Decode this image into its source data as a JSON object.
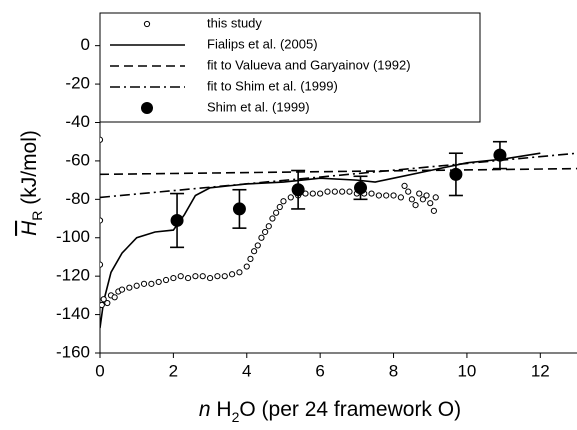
{
  "chart_data": {
    "type": "line",
    "x_label": [
      "n",
      " H",
      "2",
      "O (per 24 framework O)"
    ],
    "y_label": [
      "H",
      "R",
      " (kJ/mol)"
    ],
    "xlim": [
      0,
      13
    ],
    "ylim": [
      -160,
      17
    ],
    "xticks": [
      0,
      2,
      4,
      6,
      8,
      10,
      12
    ],
    "yticks": [
      -160,
      -140,
      -120,
      -100,
      -80,
      -60,
      -40,
      -20,
      0
    ],
    "color": "#000000",
    "legend": "top-left",
    "series": [
      {
        "name": "this study",
        "style": "open-markers",
        "x": [
          0,
          0,
          0,
          0,
          0.05,
          0.1,
          0.2,
          0.3,
          0.4,
          0.5,
          0.6,
          0.8,
          1.0,
          1.2,
          1.4,
          1.6,
          1.8,
          2.0,
          2.2,
          2.4,
          2.6,
          2.8,
          3.0,
          3.2,
          3.4,
          3.6,
          3.8,
          4.0,
          4.1,
          4.2,
          4.3,
          4.4,
          4.5,
          4.6,
          4.7,
          4.8,
          4.9,
          5.0,
          5.2,
          5.4,
          5.6,
          5.8,
          6.0,
          6.2,
          6.4,
          6.6,
          6.8,
          7.0,
          7.2,
          7.4,
          7.6,
          7.8,
          8.0,
          8.2,
          8.3,
          8.4,
          8.5,
          8.6,
          8.7,
          8.8,
          8.9,
          9.0,
          9.1,
          9.15
        ],
        "values": [
          0,
          -49,
          -91,
          -114,
          -135,
          -132,
          -134,
          -130,
          -131,
          -128,
          -127,
          -126,
          -125,
          -124,
          -124,
          -123,
          -122,
          -121,
          -120,
          -121,
          -120,
          -120,
          -121,
          -120,
          -120,
          -119,
          -118,
          -115,
          -111,
          -107,
          -104,
          -100,
          -97,
          -94,
          -90,
          -87,
          -84,
          -81,
          -79,
          -78,
          -77,
          -77,
          -77,
          -76,
          -76,
          -76,
          -76,
          -77,
          -77,
          -77,
          -78,
          -78,
          -78,
          -79,
          -73,
          -76,
          -80,
          -83,
          -77,
          -80,
          -78,
          -82,
          -86,
          -79
        ]
      },
      {
        "name": "Fialips et al. (2005)",
        "style": "solid",
        "x": [
          0,
          0.1,
          0.3,
          0.6,
          1,
          1.5,
          2,
          2.3,
          2.6,
          3,
          3.5,
          4,
          5,
          6,
          7,
          7.5,
          8,
          9,
          10,
          11,
          12
        ],
        "values": [
          -147,
          -133,
          -118,
          -108,
          -100,
          -97,
          -96,
          -88,
          -78,
          -74,
          -73,
          -72,
          -71,
          -69,
          -70,
          -71,
          -69,
          -65,
          -61,
          -59,
          -56
        ]
      },
      {
        "name": "fit to Valueva and Garyainov (1992)",
        "style": "dashed",
        "x": [
          0,
          13
        ],
        "values": [
          -67,
          -64
        ]
      },
      {
        "name": "fit to Shim et al. (1999)",
        "style": "dashdot",
        "x": [
          0,
          13
        ],
        "values": [
          -79,
          -56
        ]
      },
      {
        "name": "Shim et al. (1999)",
        "style": "filled-markers-errorbars",
        "x": [
          2.1,
          3.8,
          5.4,
          7.1,
          9.7,
          10.9
        ],
        "values": [
          -91,
          -85,
          -75,
          -74,
          -67,
          -57
        ],
        "errors": [
          14,
          10,
          10,
          6,
          11,
          7
        ]
      }
    ]
  }
}
